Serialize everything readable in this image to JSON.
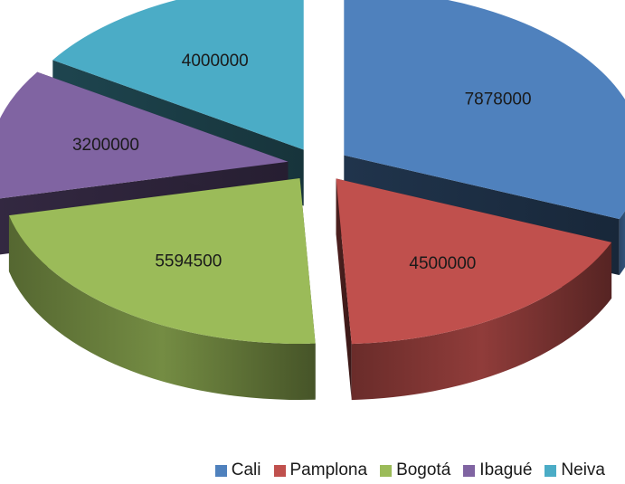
{
  "chart_data": {
    "type": "pie",
    "style": "3d-exploded",
    "categories": [
      "Cali",
      "Pamplona",
      "Bogotá",
      "Ibagué",
      "Neiva"
    ],
    "values": [
      7878000,
      4500000,
      5594500,
      3200000,
      4000000
    ],
    "data_labels": [
      "7878000",
      "4500000",
      "5594500",
      "3200000",
      "4000000"
    ],
    "colors": [
      "#4F81BD",
      "#C0504D",
      "#9BBB59",
      "#8064A2",
      "#4BACC6"
    ],
    "legend_position": "bottom-right",
    "title": ""
  }
}
